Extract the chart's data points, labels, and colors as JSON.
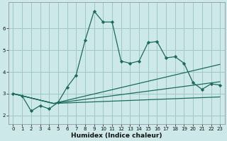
{
  "xlabel": "Humidex (Indice chaleur)",
  "background_color": "#cde8e8",
  "grid_color": "#a0c8c8",
  "line_color": "#1a6b5a",
  "xlim": [
    -0.5,
    23.5
  ],
  "ylim": [
    1.6,
    7.2
  ],
  "xticks": [
    0,
    1,
    2,
    3,
    4,
    5,
    6,
    7,
    8,
    9,
    10,
    11,
    12,
    13,
    14,
    15,
    16,
    17,
    18,
    19,
    20,
    21,
    22,
    23
  ],
  "yticks": [
    2,
    3,
    4,
    5,
    6
  ],
  "series1_x": [
    0,
    1,
    2,
    3,
    4,
    5,
    6,
    7,
    8,
    9,
    10,
    11,
    12,
    13,
    14,
    15,
    16,
    17,
    18,
    19,
    20,
    21,
    22,
    23
  ],
  "series1_y": [
    3.0,
    2.9,
    2.2,
    2.45,
    2.3,
    2.6,
    3.3,
    3.85,
    5.45,
    6.8,
    6.3,
    6.3,
    4.5,
    4.4,
    4.5,
    5.35,
    5.4,
    4.65,
    4.7,
    4.4,
    3.5,
    3.2,
    3.45,
    3.4
  ],
  "trend1_x": [
    0,
    4.5,
    23
  ],
  "trend1_y": [
    3.0,
    2.55,
    4.35
  ],
  "trend2_x": [
    0,
    4.5,
    23
  ],
  "trend2_y": [
    3.0,
    2.55,
    3.55
  ],
  "trend3_x": [
    0,
    4.5,
    23
  ],
  "trend3_y": [
    3.0,
    2.55,
    2.85
  ]
}
